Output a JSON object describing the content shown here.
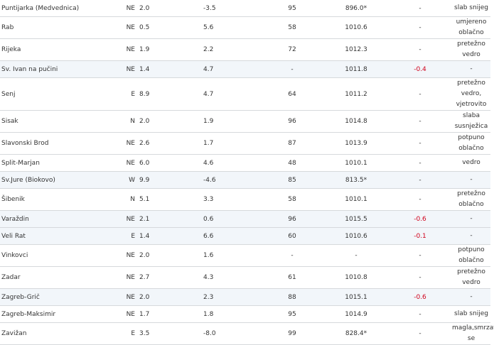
{
  "accent_colors": {
    "negative_tendency": "#d0021b",
    "highlight_row": "#f2f6fa"
  },
  "rows": [
    {
      "station": "Puntijarka (Medvednica)",
      "wind_dir": "NE",
      "wind_speed": "2.0",
      "temp": "-3.5",
      "humidity": "95",
      "pressure": "896.0*",
      "tendency": "-",
      "condition": "slab snijeg",
      "highlight": false
    },
    {
      "station": "Rab",
      "wind_dir": "NE",
      "wind_speed": "0.5",
      "temp": "5.6",
      "humidity": "58",
      "pressure": "1010.6",
      "tendency": "-",
      "condition": "umjereno oblačno",
      "highlight": false
    },
    {
      "station": "Rijeka",
      "wind_dir": "NE",
      "wind_speed": "1.9",
      "temp": "2.2",
      "humidity": "72",
      "pressure": "1012.3",
      "tendency": "-",
      "condition": "pretežno vedro",
      "highlight": false
    },
    {
      "station": "Sv. Ivan na pučini",
      "wind_dir": "NE",
      "wind_speed": "1.4",
      "temp": "4.7",
      "humidity": "-",
      "pressure": "1011.8",
      "tendency": "-0.4",
      "condition": "-",
      "highlight": true
    },
    {
      "station": "Senj",
      "wind_dir": "E",
      "wind_speed": "8.9",
      "temp": "4.7",
      "humidity": "64",
      "pressure": "1011.2",
      "tendency": "-",
      "condition": "pretežno vedro, vjetrovito",
      "highlight": false
    },
    {
      "station": "Sisak",
      "wind_dir": "N",
      "wind_speed": "2.0",
      "temp": "1.9",
      "humidity": "96",
      "pressure": "1014.8",
      "tendency": "-",
      "condition": "slaba susnježica",
      "highlight": false
    },
    {
      "station": "Slavonski Brod",
      "wind_dir": "NE",
      "wind_speed": "2.6",
      "temp": "1.7",
      "humidity": "87",
      "pressure": "1013.9",
      "tendency": "-",
      "condition": "potpuno oblačno",
      "highlight": false
    },
    {
      "station": "Split-Marjan",
      "wind_dir": "NE",
      "wind_speed": "6.0",
      "temp": "4.6",
      "humidity": "48",
      "pressure": "1010.1",
      "tendency": "-",
      "condition": "vedro",
      "highlight": false
    },
    {
      "station": "Sv.Jure (Biokovo)",
      "wind_dir": "W",
      "wind_speed": "9.9",
      "temp": "-4.6",
      "humidity": "85",
      "pressure": "813.5*",
      "tendency": "-",
      "condition": "-",
      "highlight": true
    },
    {
      "station": "Šibenik",
      "wind_dir": "N",
      "wind_speed": "5.1",
      "temp": "3.3",
      "humidity": "58",
      "pressure": "1010.1",
      "tendency": "-",
      "condition": "pretežno oblačno",
      "highlight": false
    },
    {
      "station": "Varaždin",
      "wind_dir": "NE",
      "wind_speed": "2.1",
      "temp": "0.6",
      "humidity": "96",
      "pressure": "1015.5",
      "tendency": "-0.6",
      "condition": "-",
      "highlight": true
    },
    {
      "station": "Veli Rat",
      "wind_dir": "E",
      "wind_speed": "1.4",
      "temp": "6.6",
      "humidity": "60",
      "pressure": "1010.6",
      "tendency": "-0.1",
      "condition": "-",
      "highlight": true
    },
    {
      "station": "Vinkovci",
      "wind_dir": "NE",
      "wind_speed": "2.0",
      "temp": "1.6",
      "humidity": "-",
      "pressure": "-",
      "tendency": "-",
      "condition": "potpuno oblačno",
      "highlight": false
    },
    {
      "station": "Zadar",
      "wind_dir": "NE",
      "wind_speed": "2.7",
      "temp": "4.3",
      "humidity": "61",
      "pressure": "1010.8",
      "tendency": "-",
      "condition": "pretežno vedro",
      "highlight": false
    },
    {
      "station": "Zagreb-Grič",
      "wind_dir": "NE",
      "wind_speed": "2.0",
      "temp": "2.3",
      "humidity": "88",
      "pressure": "1015.1",
      "tendency": "-0.6",
      "condition": "-",
      "highlight": true
    },
    {
      "station": "Zagreb-Maksimir",
      "wind_dir": "NE",
      "wind_speed": "1.7",
      "temp": "1.8",
      "humidity": "95",
      "pressure": "1014.9",
      "tendency": "-",
      "condition": "slab snijeg",
      "highlight": false
    },
    {
      "station": "Zavižan",
      "wind_dir": "E",
      "wind_speed": "3.5",
      "temp": "-8.0",
      "humidity": "99",
      "pressure": "828.4*",
      "tendency": "-",
      "condition": "magla,smrzava se",
      "highlight": false
    }
  ]
}
